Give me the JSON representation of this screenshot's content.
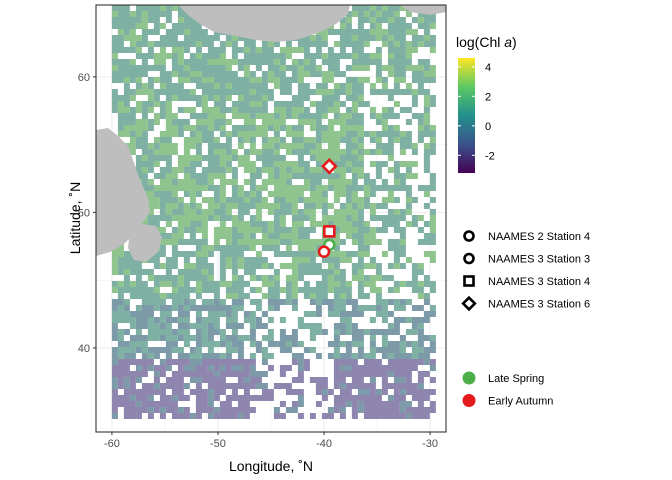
{
  "chart_data": {
    "type": "map",
    "xlabel": "Longitude, ˚N",
    "ylabel": "Latitude, ˚N",
    "xlim": [
      -61.5,
      -28.5
    ],
    "ylim": [
      33.8,
      65.3
    ],
    "xticks": [
      -60,
      -50,
      -40,
      -30
    ],
    "yticks": [
      40,
      50,
      60
    ],
    "colorbar": {
      "title_prefix": "log(Chl ",
      "title_italic": "a",
      "title_suffix": ")",
      "ticks": [
        4,
        2,
        0,
        -2
      ],
      "range": [
        -3.2,
        4.6
      ]
    },
    "stations": [
      {
        "label": "NAAMES 2 Station 4",
        "shape": "circle",
        "season": "Late Spring",
        "lon": -39.5,
        "lat": 47.6
      },
      {
        "label": "NAAMES 3 Station 3",
        "shape": "circle",
        "season": "Early Autumn",
        "lon": -40.0,
        "lat": 47.1
      },
      {
        "label": "NAAMES 3 Station 4",
        "shape": "square",
        "season": "Early Autumn",
        "lon": -39.5,
        "lat": 48.6
      },
      {
        "label": "NAAMES 3 Station 6",
        "shape": "diamond",
        "season": "Early Autumn",
        "lon": -39.5,
        "lat": 53.4
      }
    ],
    "seasons": [
      {
        "label": "Late Spring",
        "color": "#4daf4a"
      },
      {
        "label": "Early Autumn",
        "color": "#e41a1c"
      }
    ]
  }
}
